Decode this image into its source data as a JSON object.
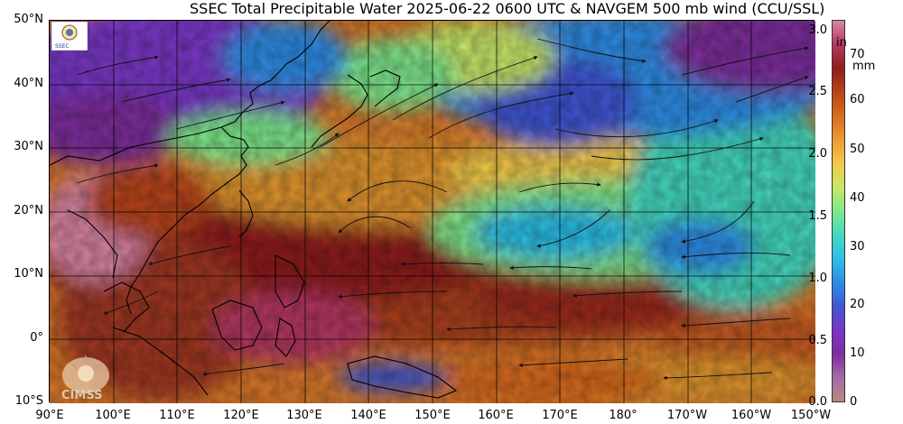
{
  "title": "SSEC Total Precipitable Water  2025-06-22 0600 UTC & NAVGEM 500 mb wind (CCU/SSL)",
  "lat_labels": [
    "50°N",
    "40°N",
    "30°N",
    "20°N",
    "10°N",
    "0°",
    "10°S"
  ],
  "lon_labels": [
    "90°E",
    "100°E",
    "110°E",
    "120°E",
    "130°E",
    "140°E",
    "150°E",
    "160°E",
    "170°E",
    "180°",
    "170°W",
    "160°W",
    "150°W"
  ],
  "colorbar": {
    "inch_unit": "in",
    "mm_unit": "mm",
    "inch_labels": [
      "3.0",
      "2.5",
      "2.0",
      "1.5",
      "1.0",
      "0.5",
      "0.0"
    ],
    "mm_labels": [
      "70",
      "60",
      "50",
      "40",
      "30",
      "20",
      "10",
      "0"
    ],
    "colors": [
      "#b88a7c",
      "#a56ba6",
      "#7d2e9c",
      "#7a37c8",
      "#3f57d4",
      "#2f8de6",
      "#2cc0e8",
      "#44d8c0",
      "#7fe88c",
      "#c8e868",
      "#f1c94a",
      "#ee9a34",
      "#d96b1d",
      "#b8441a",
      "#8e1e1a",
      "#b63862",
      "#d986a4"
    ]
  },
  "logos": {
    "ssec_text": "SSEC",
    "cimss_text": "CIMSS"
  }
}
